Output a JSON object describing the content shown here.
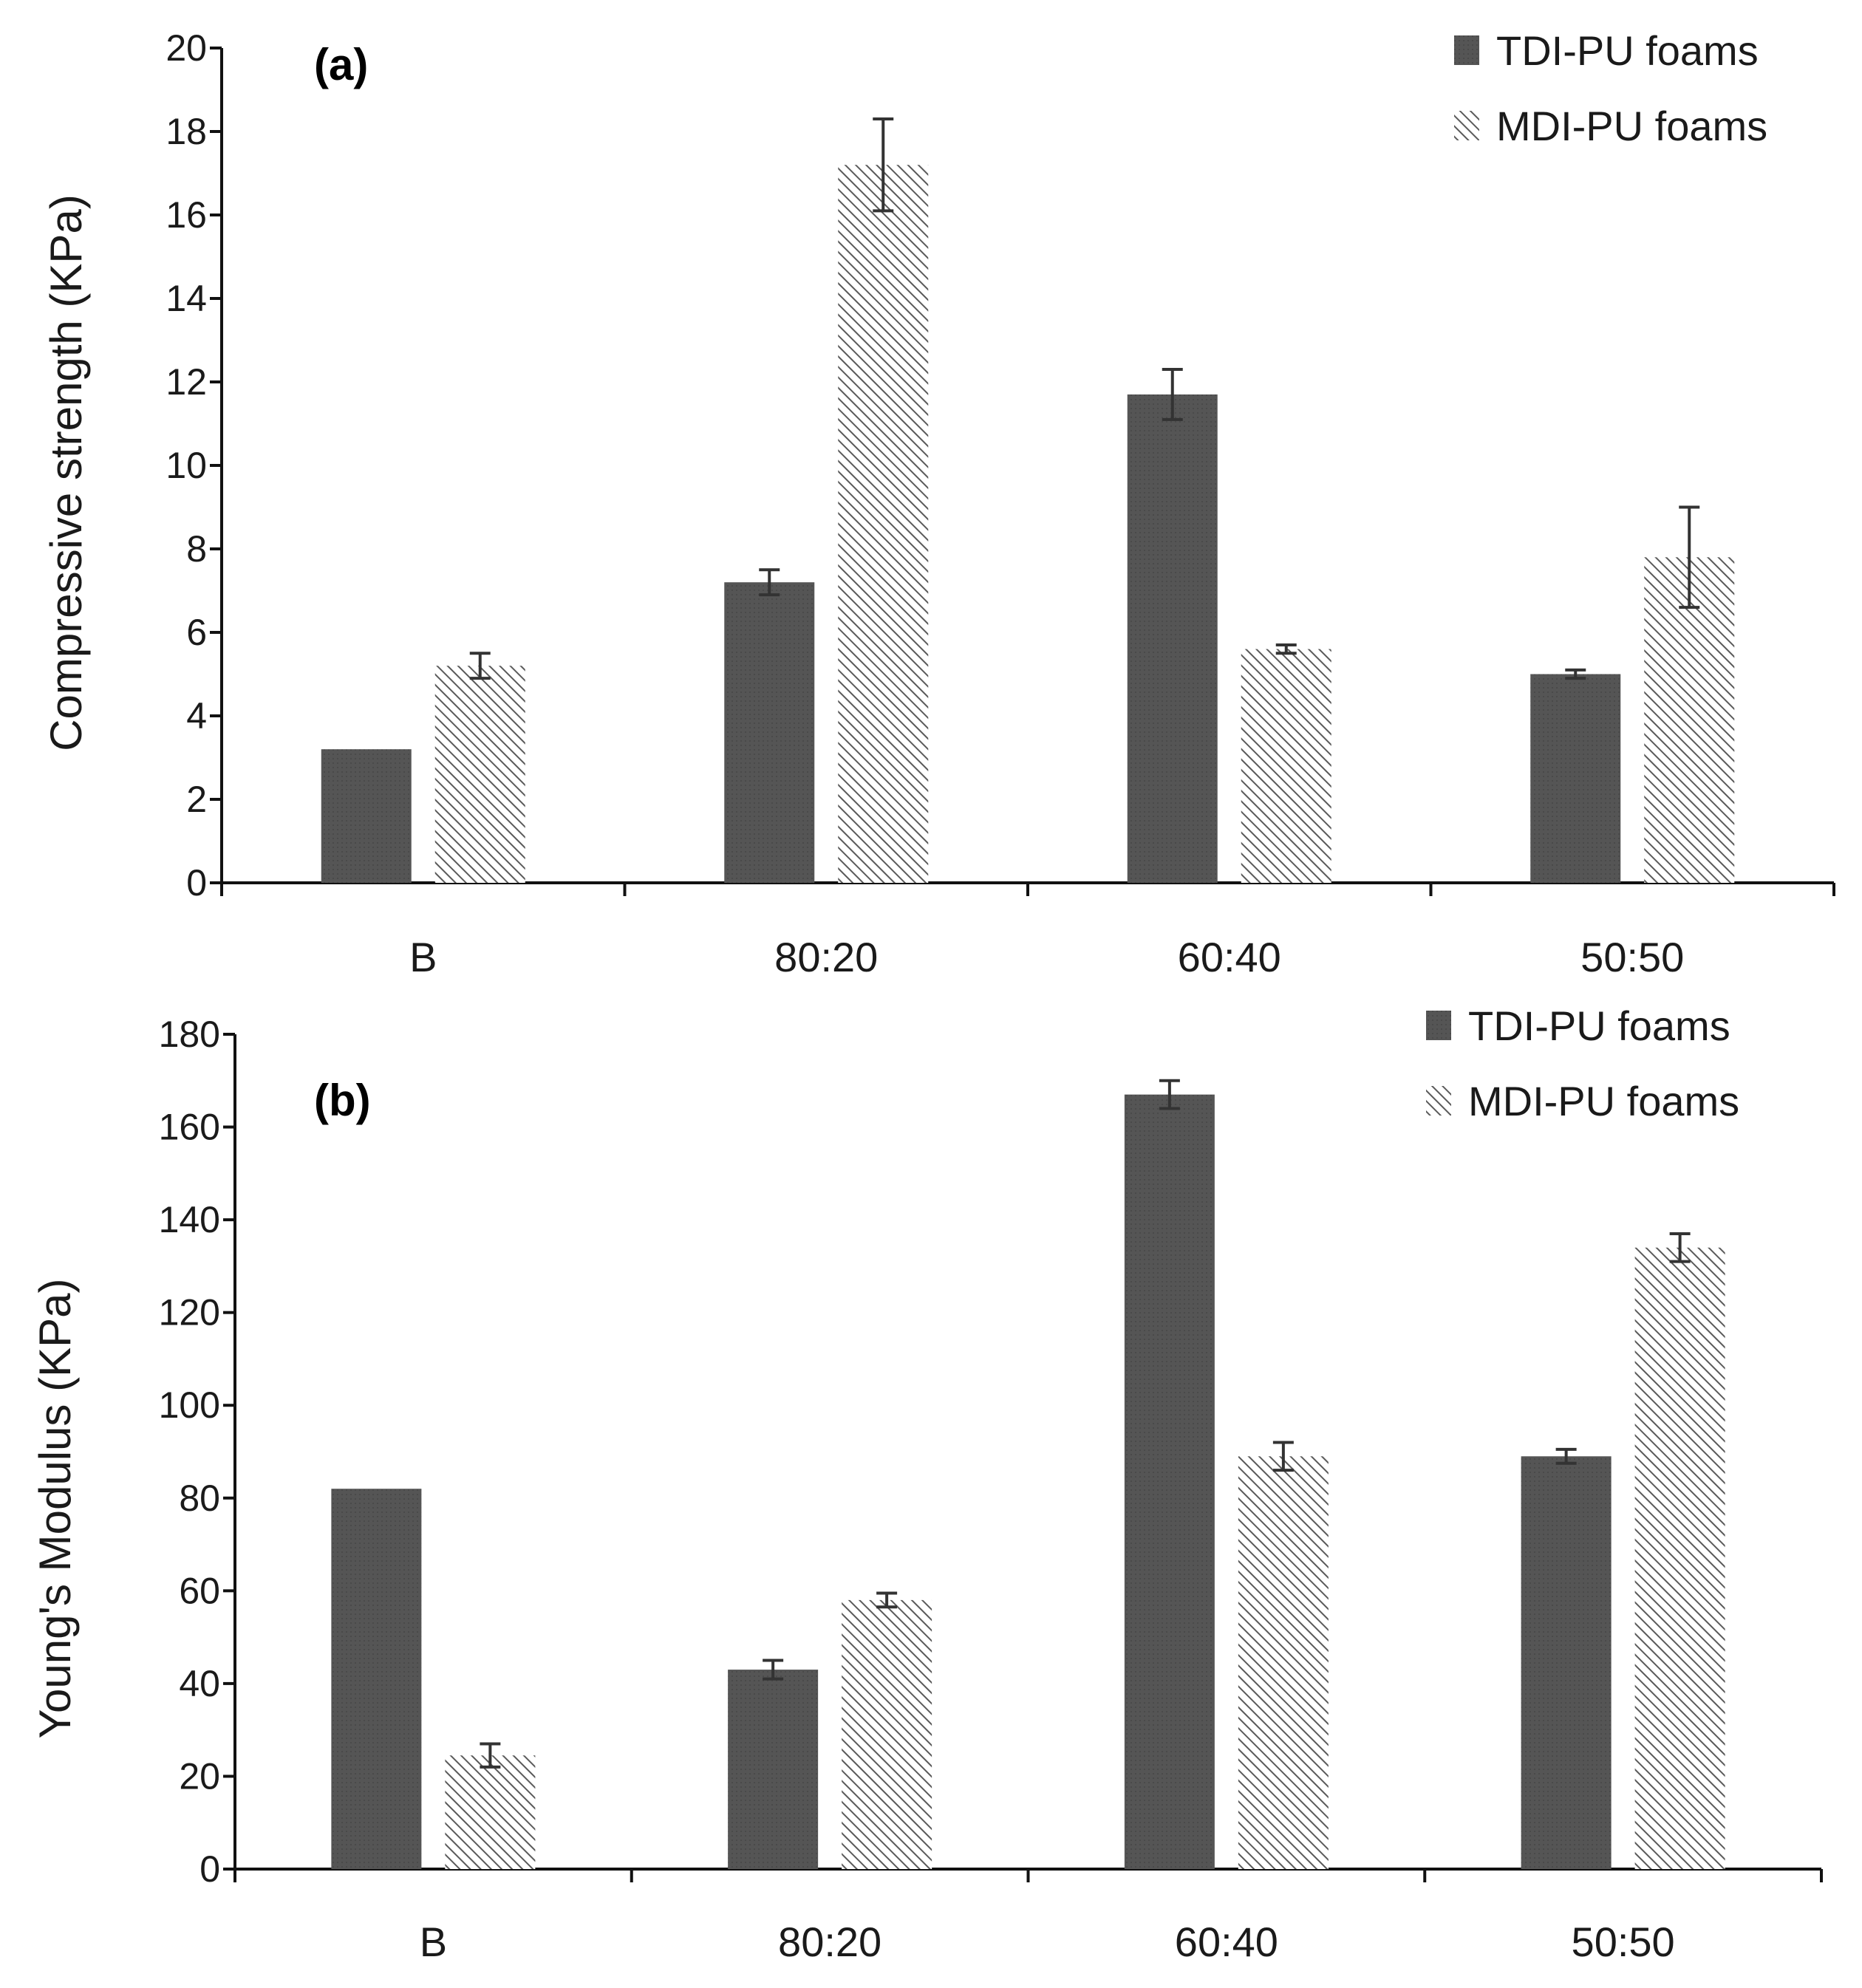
{
  "chart_data": [
    {
      "type": "bar",
      "panel_label": "(a)",
      "ylabel": "Compressive strength (KPa)",
      "xlabel": "",
      "ylim": [
        0,
        20
      ],
      "yticks": [
        0,
        2,
        4,
        6,
        8,
        10,
        12,
        14,
        16,
        18,
        20
      ],
      "categories": [
        "B",
        "80:20",
        "60:40",
        "50:50"
      ],
      "legend_position": "top-right",
      "series": [
        {
          "name": "TDI-PU foams",
          "values": [
            3.2,
            7.2,
            11.7,
            5.0
          ],
          "errors": [
            0,
            0.3,
            0.6,
            0.1
          ],
          "style": "solid"
        },
        {
          "name": "MDI-PU foams",
          "values": [
            5.2,
            17.2,
            5.6,
            7.8
          ],
          "errors": [
            0.3,
            1.1,
            0.1,
            1.2
          ],
          "style": "hatched"
        }
      ]
    },
    {
      "type": "bar",
      "panel_label": "(b)",
      "ylabel": "Young's Modulus (KPa)",
      "xlabel": "",
      "ylim": [
        0,
        180
      ],
      "yticks": [
        0,
        20,
        40,
        60,
        80,
        100,
        120,
        140,
        160,
        180
      ],
      "categories": [
        "B",
        "80:20",
        "60:40",
        "50:50"
      ],
      "legend_position": "top-right",
      "series": [
        {
          "name": "TDI-PU foams",
          "values": [
            82,
            43,
            167,
            89
          ],
          "errors": [
            0,
            2,
            3,
            1.5
          ],
          "style": "solid"
        },
        {
          "name": "MDI-PU foams",
          "values": [
            24.5,
            58,
            89,
            134
          ],
          "errors": [
            2.5,
            1.5,
            3,
            3
          ],
          "style": "hatched"
        }
      ]
    }
  ],
  "colors": {
    "solid_bar": "#555555",
    "hatch_stroke": "#5a5a5a",
    "axis": "#111111",
    "errorbar": "#333333"
  }
}
